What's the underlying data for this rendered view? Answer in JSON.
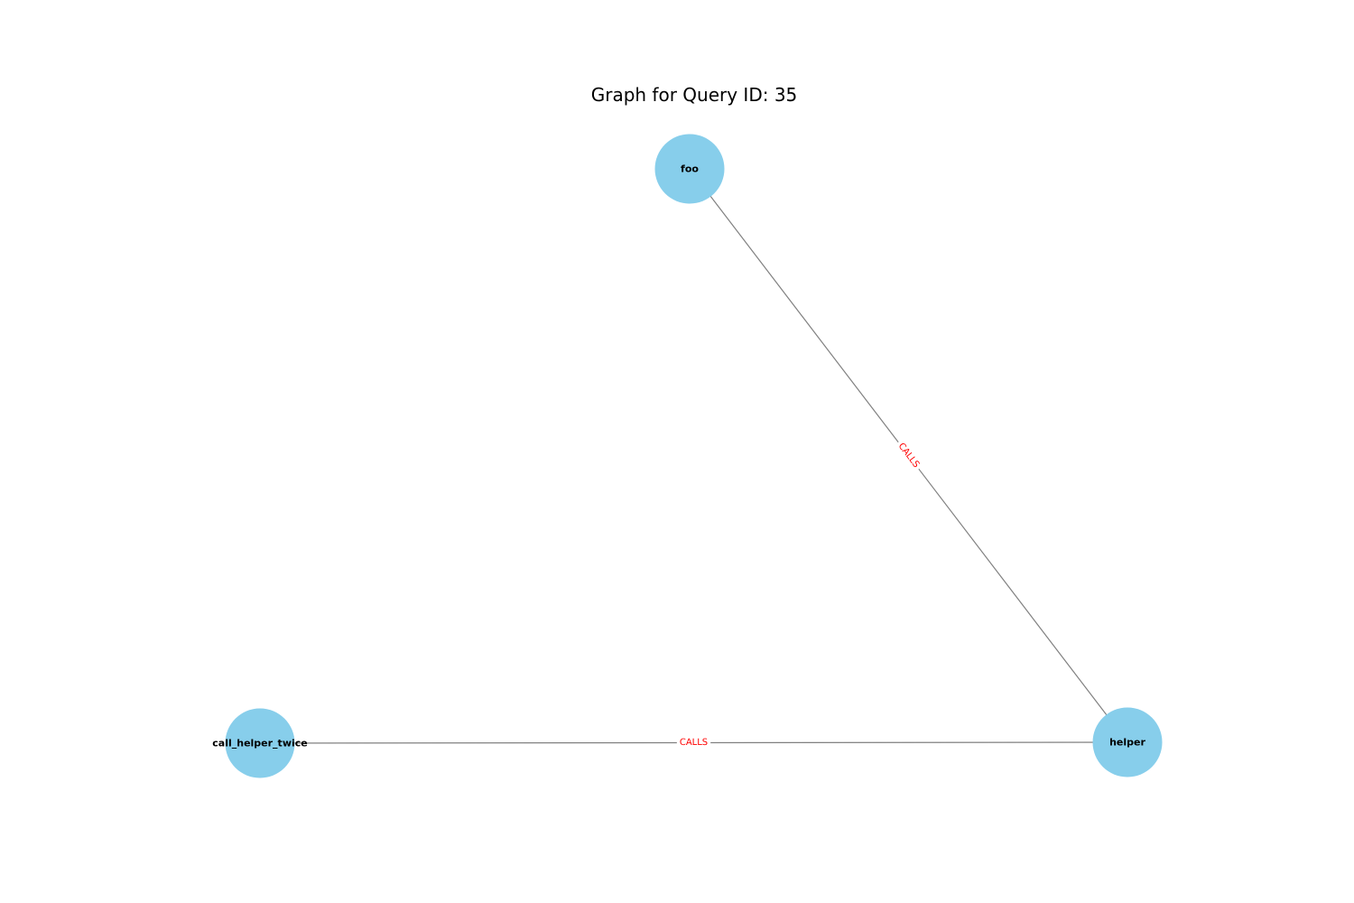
{
  "title": "Graph for Query ID: 35",
  "colors": {
    "node_fill": "#87ceeb",
    "edge_stroke": "#808080",
    "edge_label": "#ff0000",
    "background": "#ffffff",
    "text": "#000000"
  },
  "graph": {
    "nodes": [
      {
        "id": "foo",
        "label": "foo"
      },
      {
        "id": "helper",
        "label": "helper"
      },
      {
        "id": "call_helper_twice",
        "label": "call_helper_twice"
      }
    ],
    "edges": [
      {
        "source": "foo",
        "target": "helper",
        "label": "CALLS"
      },
      {
        "source": "call_helper_twice",
        "target": "helper",
        "label": "CALLS"
      }
    ]
  }
}
